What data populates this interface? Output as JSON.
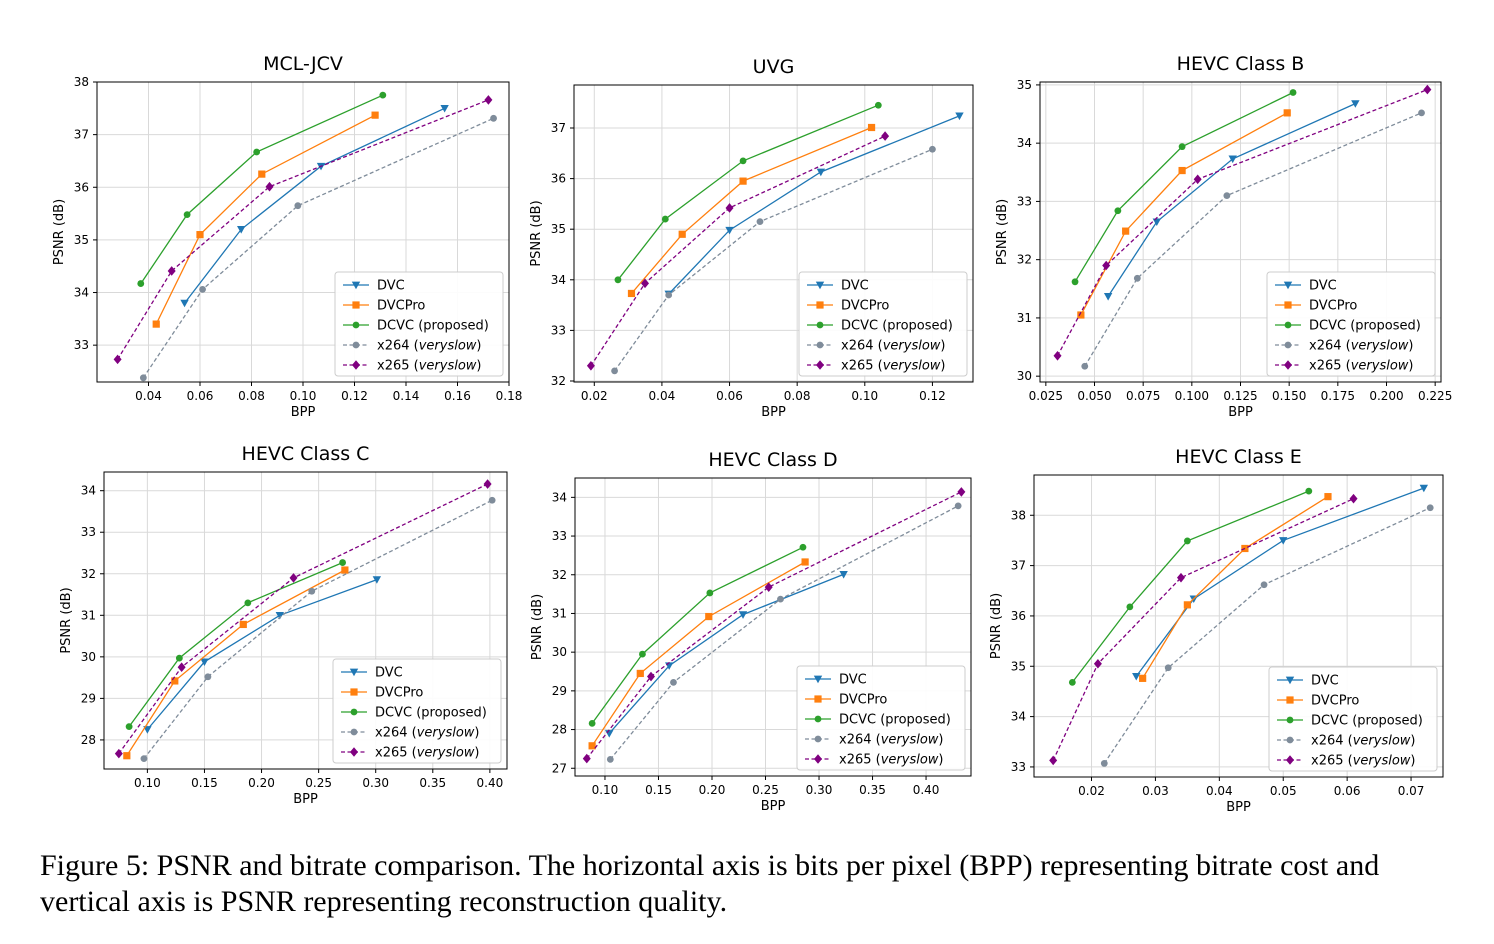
{
  "caption": "Figure 5: PSNR and bitrate comparison. The horizontal axis is bits per pixel (BPP) representing bitrate cost and vertical axis is PSNR representing reconstruction quality.",
  "series_styles": [
    {
      "name": "DVC",
      "italic": "",
      "color": "#1f77b4",
      "marker": "triangle-down",
      "dash": false
    },
    {
      "name": "DVCPro",
      "italic": "",
      "color": "#ff7f0e",
      "marker": "square",
      "dash": false
    },
    {
      "name": "DCVC (proposed)",
      "italic": "",
      "color": "#2ca02c",
      "marker": "circle",
      "dash": false
    },
    {
      "name": "x264 (",
      "italic": "veryslow",
      "suffix": ")",
      "color": "#7f8c9a",
      "marker": "circle",
      "dash": true
    },
    {
      "name": "x265 (",
      "italic": "veryslow",
      "suffix": ")",
      "color": "#800080",
      "marker": "diamond",
      "dash": true
    }
  ],
  "chart_data": [
    {
      "type": "line",
      "title": "MCL-JCV",
      "xlabel": "BPP",
      "ylabel": "PSNR (dB)",
      "xlim": [
        0.02,
        0.18
      ],
      "ylim": [
        32.3,
        38.0
      ],
      "xticks": [
        0.04,
        0.06,
        0.08,
        0.1,
        0.12,
        0.14,
        0.16,
        0.18
      ],
      "xticklabels": [
        "0.04",
        "0.06",
        "0.08",
        "0.10",
        "0.12",
        "0.14",
        "0.16",
        "0.18"
      ],
      "yticks": [
        33,
        34,
        35,
        36,
        37,
        38
      ],
      "yticklabels": [
        "33",
        "34",
        "35",
        "36",
        "37",
        "38"
      ],
      "grid": true,
      "legend": "lower-right",
      "series": [
        {
          "name": "DVC",
          "x": [
            0.054,
            0.076,
            0.107,
            0.155
          ],
          "y": [
            33.8,
            35.2,
            36.4,
            37.5
          ]
        },
        {
          "name": "DVCPro",
          "x": [
            0.043,
            0.06,
            0.084,
            0.128
          ],
          "y": [
            33.4,
            35.1,
            36.25,
            37.37
          ]
        },
        {
          "name": "DCVC (proposed)",
          "x": [
            0.037,
            0.055,
            0.082,
            0.131
          ],
          "y": [
            34.17,
            35.48,
            36.67,
            37.75
          ]
        },
        {
          "name": "x264 (veryslow)",
          "x": [
            0.038,
            0.061,
            0.098,
            0.174
          ],
          "y": [
            32.38,
            34.06,
            35.65,
            37.31
          ]
        },
        {
          "name": "x265 (veryslow)",
          "x": [
            0.028,
            0.049,
            0.087,
            0.172
          ],
          "y": [
            32.73,
            34.41,
            36.01,
            37.66
          ]
        }
      ]
    },
    {
      "type": "line",
      "title": "UVG",
      "xlabel": "BPP",
      "ylabel": "PSNR (dB)",
      "xlim": [
        0.014,
        0.132
      ],
      "ylim": [
        31.98,
        37.85
      ],
      "xticks": [
        0.02,
        0.04,
        0.06,
        0.08,
        0.1,
        0.12
      ],
      "xticklabels": [
        "0.02",
        "0.04",
        "0.06",
        "0.08",
        "0.10",
        "0.12"
      ],
      "yticks": [
        32,
        33,
        34,
        35,
        36,
        37
      ],
      "yticklabels": [
        "32",
        "33",
        "34",
        "35",
        "36",
        "37"
      ],
      "grid": true,
      "legend": "lower-right",
      "series": [
        {
          "name": "DVC",
          "x": [
            0.042,
            0.06,
            0.087,
            0.128
          ],
          "y": [
            33.72,
            34.98,
            36.13,
            37.24
          ]
        },
        {
          "name": "DVCPro",
          "x": [
            0.031,
            0.046,
            0.064,
            0.102
          ],
          "y": [
            33.73,
            34.9,
            35.95,
            37.01
          ]
        },
        {
          "name": "DCVC (proposed)",
          "x": [
            0.027,
            0.041,
            0.064,
            0.104
          ],
          "y": [
            34.0,
            35.2,
            36.35,
            37.45
          ]
        },
        {
          "name": "x264 (veryslow)",
          "x": [
            0.026,
            0.042,
            0.069,
            0.12
          ],
          "y": [
            32.2,
            33.7,
            35.15,
            36.58
          ]
        },
        {
          "name": "x265 (veryslow)",
          "x": [
            0.019,
            0.035,
            0.06,
            0.106
          ],
          "y": [
            32.3,
            33.93,
            35.42,
            36.84
          ]
        }
      ]
    },
    {
      "type": "line",
      "title": "HEVC Class B",
      "xlabel": "BPP",
      "ylabel": "PSNR (dB)",
      "xlim": [
        0.022,
        0.228
      ],
      "ylim": [
        29.9,
        35.05
      ],
      "xticks": [
        0.025,
        0.05,
        0.075,
        0.1,
        0.125,
        0.15,
        0.175,
        0.2,
        0.225
      ],
      "xticklabels": [
        "0.025",
        "0.050",
        "0.075",
        "0.100",
        "0.125",
        "0.150",
        "0.175",
        "0.200",
        "0.225"
      ],
      "yticks": [
        30,
        31,
        32,
        33,
        34,
        35
      ],
      "yticklabels": [
        "30",
        "31",
        "32",
        "33",
        "34",
        "35"
      ],
      "grid": true,
      "legend": "lower-right",
      "series": [
        {
          "name": "DVC",
          "x": [
            0.057,
            0.082,
            0.121,
            0.184
          ],
          "y": [
            31.37,
            32.65,
            33.73,
            34.68
          ]
        },
        {
          "name": "DVCPro",
          "x": [
            0.043,
            0.066,
            0.095,
            0.149
          ],
          "y": [
            31.05,
            32.49,
            33.53,
            34.52
          ]
        },
        {
          "name": "DCVC (proposed)",
          "x": [
            0.04,
            0.062,
            0.095,
            0.152
          ],
          "y": [
            31.62,
            32.84,
            33.94,
            34.87
          ]
        },
        {
          "name": "x264 (veryslow)",
          "x": [
            0.045,
            0.072,
            0.118,
            0.218
          ],
          "y": [
            30.17,
            31.68,
            33.1,
            34.52
          ]
        },
        {
          "name": "x265 (veryslow)",
          "x": [
            0.031,
            0.056,
            0.103,
            0.221
          ],
          "y": [
            30.35,
            31.9,
            33.38,
            34.92
          ]
        }
      ]
    },
    {
      "type": "line",
      "title": "HEVC Class C",
      "xlabel": "BPP",
      "ylabel": "PSNR (dB)",
      "xlim": [
        0.062,
        0.415
      ],
      "ylim": [
        27.3,
        34.45
      ],
      "xticks": [
        0.1,
        0.15,
        0.2,
        0.25,
        0.3,
        0.35,
        0.4
      ],
      "xticklabels": [
        "0.10",
        "0.15",
        "0.20",
        "0.25",
        "0.30",
        "0.35",
        "0.40"
      ],
      "yticks": [
        28,
        29,
        30,
        31,
        32,
        33,
        34
      ],
      "yticklabels": [
        "28",
        "29",
        "30",
        "31",
        "32",
        "33",
        "34"
      ],
      "grid": true,
      "legend": "lower-right",
      "series": [
        {
          "name": "DVC",
          "x": [
            0.1,
            0.15,
            0.216,
            0.301
          ],
          "y": [
            28.25,
            29.88,
            31.0,
            31.86
          ]
        },
        {
          "name": "DVCPro",
          "x": [
            0.082,
            0.124,
            0.184,
            0.273
          ],
          "y": [
            27.62,
            29.42,
            30.78,
            32.09
          ]
        },
        {
          "name": "DCVC (proposed)",
          "x": [
            0.084,
            0.128,
            0.188,
            0.271
          ],
          "y": [
            28.32,
            29.97,
            31.3,
            32.27
          ]
        },
        {
          "name": "x264 (veryslow)",
          "x": [
            0.097,
            0.153,
            0.244,
            0.402
          ],
          "y": [
            27.55,
            29.52,
            31.58,
            33.77
          ]
        },
        {
          "name": "x265 (veryslow)",
          "x": [
            0.075,
            0.13,
            0.228,
            0.398
          ],
          "y": [
            27.67,
            29.75,
            31.9,
            34.16
          ]
        }
      ]
    },
    {
      "type": "line",
      "title": "HEVC Class D",
      "xlabel": "BPP",
      "ylabel": "PSNR (dB)",
      "xlim": [
        0.072,
        0.442
      ],
      "ylim": [
        26.8,
        34.5
      ],
      "xticks": [
        0.1,
        0.15,
        0.2,
        0.25,
        0.3,
        0.35,
        0.4
      ],
      "xticklabels": [
        "0.10",
        "0.15",
        "0.20",
        "0.25",
        "0.30",
        "0.35",
        "0.40"
      ],
      "yticks": [
        27,
        28,
        29,
        30,
        31,
        32,
        33,
        34
      ],
      "yticklabels": [
        "27",
        "28",
        "29",
        "30",
        "31",
        "32",
        "33",
        "34"
      ],
      "grid": true,
      "legend": "lower-right",
      "series": [
        {
          "name": "DVC",
          "x": [
            0.104,
            0.16,
            0.229,
            0.323
          ],
          "y": [
            27.9,
            29.65,
            30.97,
            32.01
          ]
        },
        {
          "name": "DVCPro",
          "x": [
            0.088,
            0.133,
            0.197,
            0.287
          ],
          "y": [
            27.58,
            29.45,
            30.92,
            32.33
          ]
        },
        {
          "name": "DCVC (proposed)",
          "x": [
            0.088,
            0.135,
            0.198,
            0.285
          ],
          "y": [
            28.16,
            29.95,
            31.53,
            32.71
          ]
        },
        {
          "name": "x264 (veryslow)",
          "x": [
            0.105,
            0.164,
            0.264,
            0.43
          ],
          "y": [
            27.23,
            29.22,
            31.37,
            33.78
          ]
        },
        {
          "name": "x265 (veryslow)",
          "x": [
            0.083,
            0.143,
            0.253,
            0.433
          ],
          "y": [
            27.25,
            29.37,
            31.68,
            34.14
          ]
        }
      ]
    },
    {
      "type": "line",
      "title": "HEVC Class E",
      "xlabel": "BPP",
      "ylabel": "PSNR (dB)",
      "xlim": [
        0.011,
        0.075
      ],
      "ylim": [
        32.8,
        38.8
      ],
      "xticks": [
        0.02,
        0.03,
        0.04,
        0.05,
        0.06,
        0.07
      ],
      "xticklabels": [
        "0.02",
        "0.03",
        "0.04",
        "0.05",
        "0.06",
        "0.07"
      ],
      "yticks": [
        33,
        34,
        35,
        36,
        37,
        38
      ],
      "yticklabels": [
        "33",
        "34",
        "35",
        "36",
        "37",
        "38"
      ],
      "grid": true,
      "legend": "lower-right",
      "series": [
        {
          "name": "DVC",
          "x": [
            0.027,
            0.036,
            0.05,
            0.072
          ],
          "y": [
            34.8,
            36.34,
            37.5,
            38.54
          ]
        },
        {
          "name": "DVCPro",
          "x": [
            0.028,
            0.035,
            0.044,
            0.057
          ],
          "y": [
            34.76,
            36.22,
            37.34,
            38.37
          ]
        },
        {
          "name": "DCVC (proposed)",
          "x": [
            0.017,
            0.026,
            0.035,
            0.054
          ],
          "y": [
            34.68,
            36.18,
            37.49,
            38.48
          ]
        },
        {
          "name": "x264 (veryslow)",
          "x": [
            0.022,
            0.032,
            0.047,
            0.073
          ],
          "y": [
            33.07,
            34.97,
            36.62,
            38.15
          ]
        },
        {
          "name": "x265 (veryslow)",
          "x": [
            0.014,
            0.021,
            0.034,
            0.061
          ],
          "y": [
            33.13,
            35.05,
            36.76,
            38.33
          ]
        }
      ]
    }
  ]
}
